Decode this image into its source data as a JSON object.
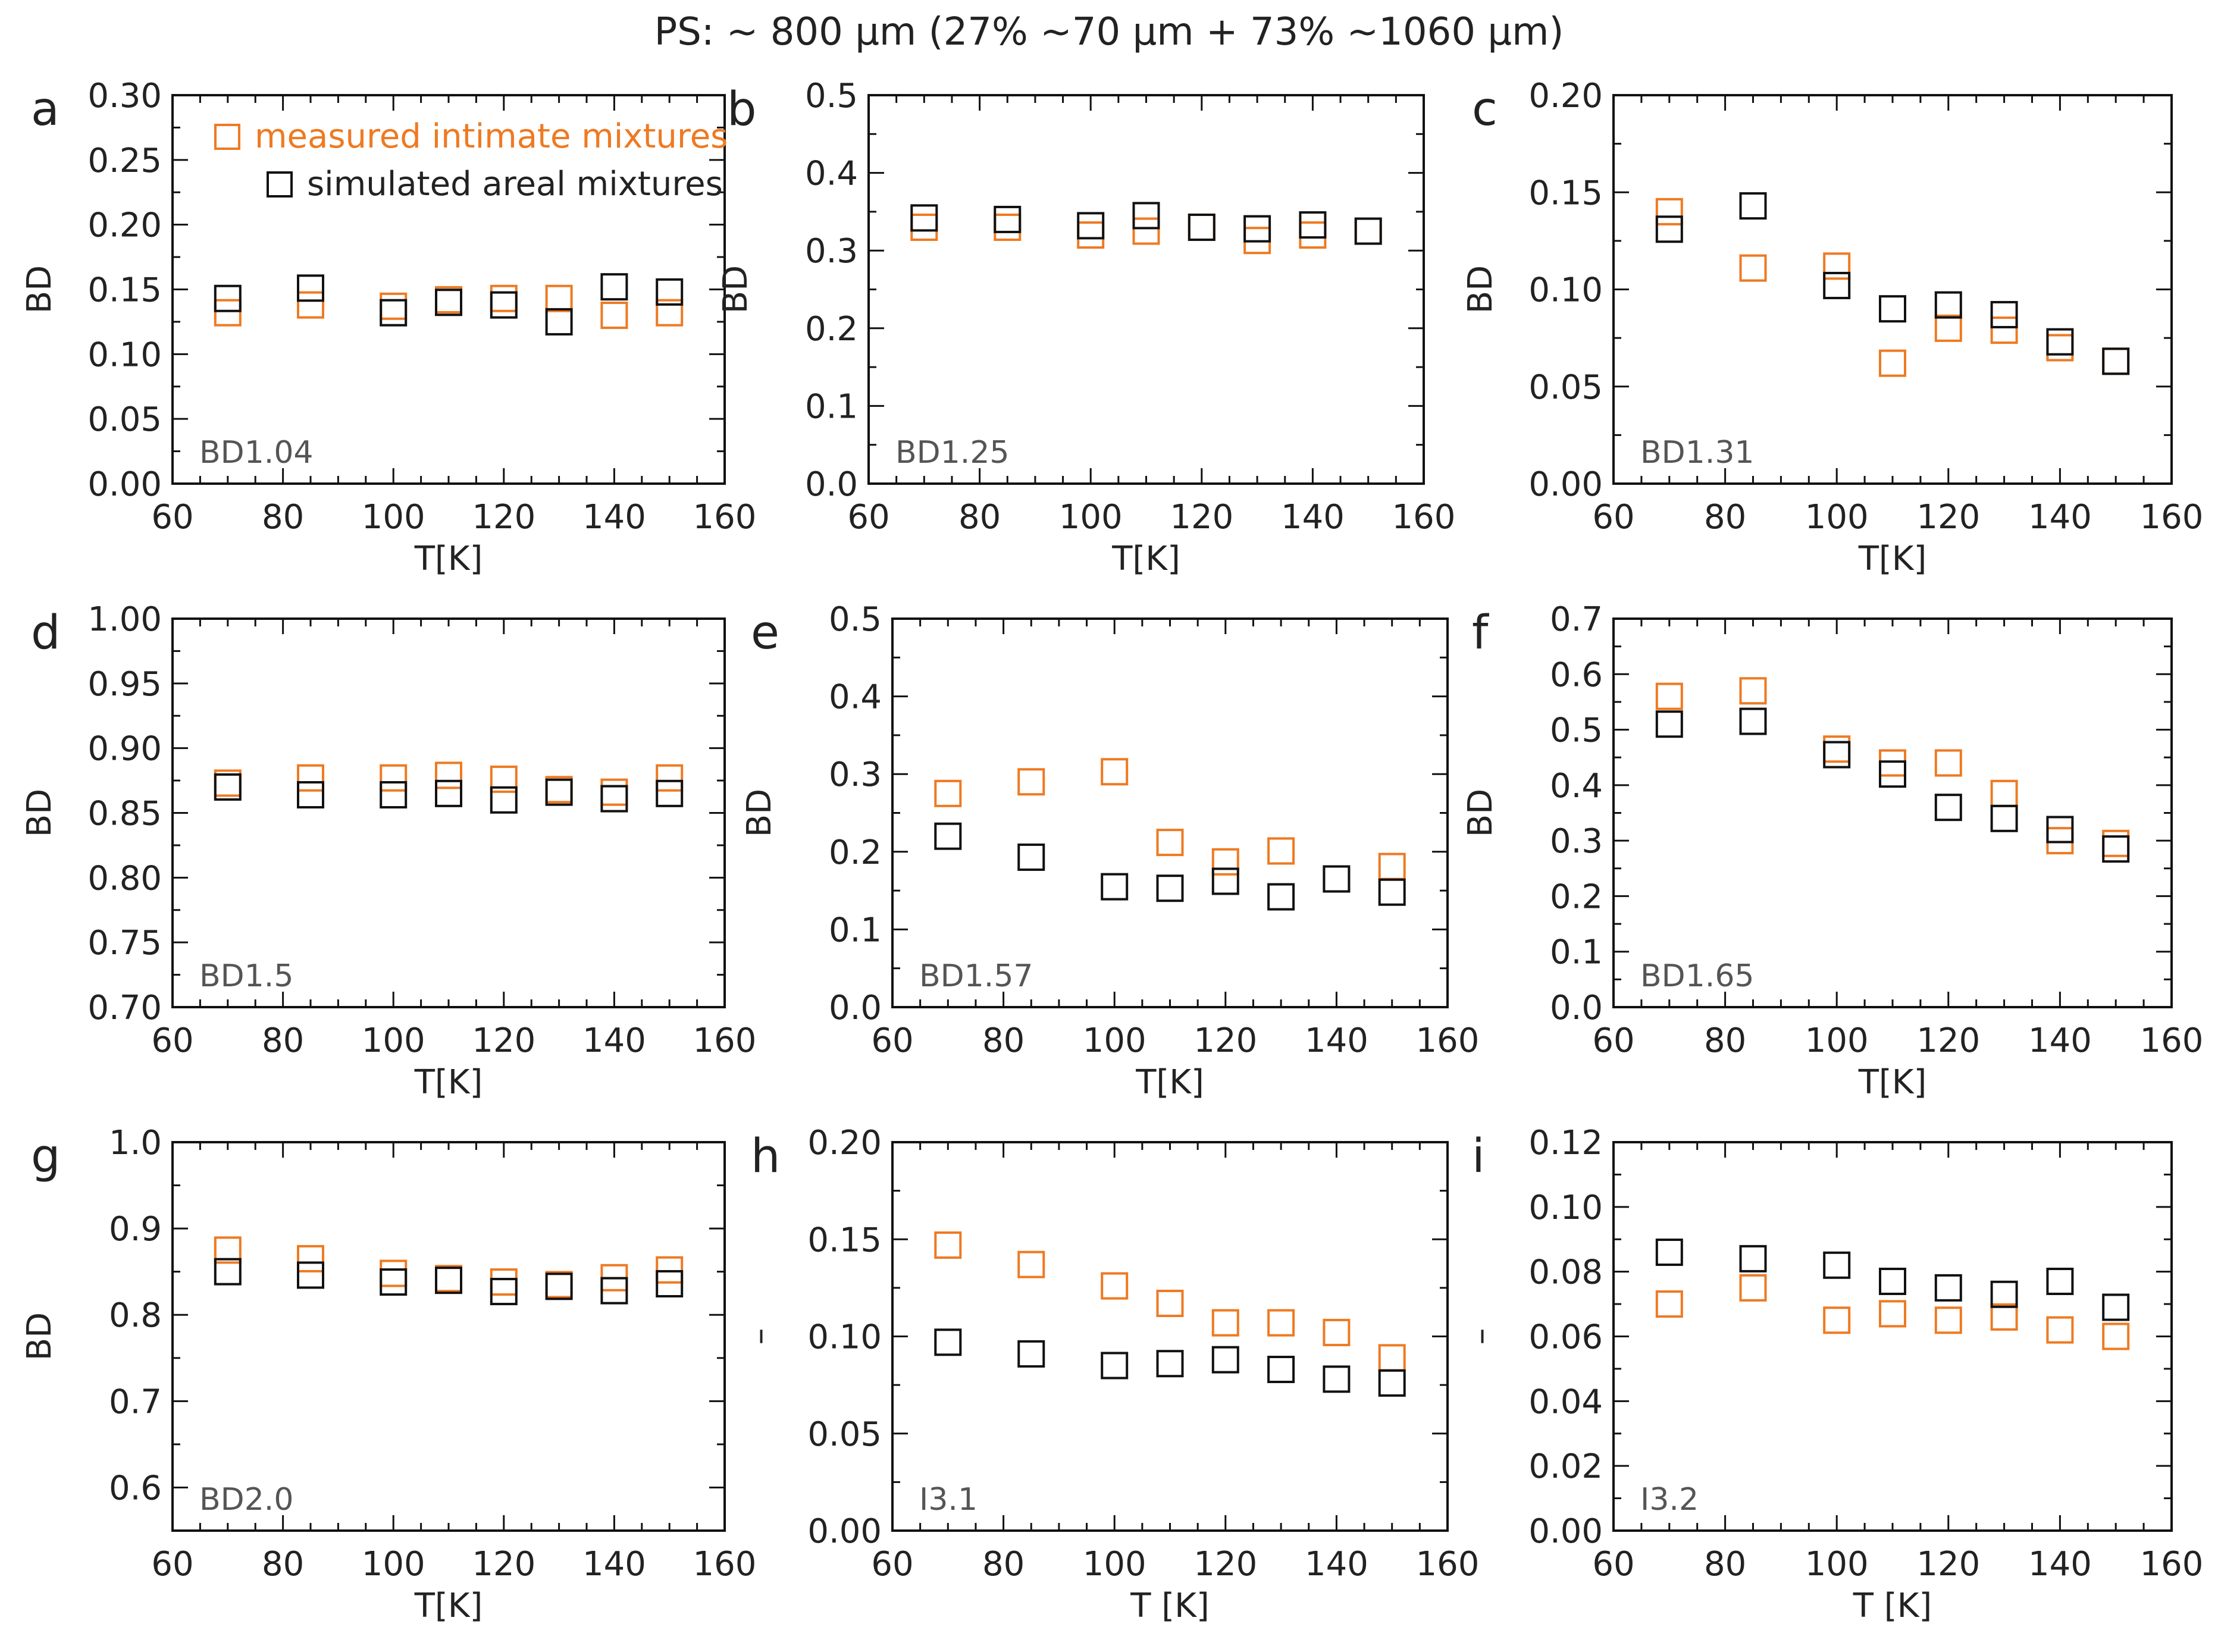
{
  "suptitle": "PS: ~ 800 µm  (27% ~70 µm + 73% ~1060 µm)",
  "colors": {
    "measured": "#ee7a22",
    "simulated": "#111111",
    "axis": "#111111"
  },
  "legend": {
    "measured": "measured intimate mixtures",
    "simulated": "simulated areal mixtures"
  },
  "chart_data": [
    {
      "type": "scatter",
      "panel": "a",
      "label": "BD1.04",
      "xlabel": "T[K]",
      "ylabel": "BD",
      "xlim": [
        60,
        160
      ],
      "ylim": [
        0.0,
        0.3
      ],
      "xticks": [
        "60",
        "80",
        "100",
        "120",
        "140",
        "160"
      ],
      "yticks": [
        "0.00",
        "0.05",
        "0.10",
        "0.15",
        "0.20",
        "0.25",
        "0.30"
      ],
      "x": [
        70,
        85,
        100,
        110,
        120,
        130,
        140,
        150
      ],
      "series": [
        {
          "name": "measured intimate mixtures",
          "values": [
            0.132,
            0.138,
            0.137,
            0.142,
            0.143,
            0.143,
            0.13,
            0.132
          ]
        },
        {
          "name": "simulated areal mixtures",
          "values": [
            0.143,
            0.151,
            0.132,
            0.14,
            0.138,
            0.125,
            0.152,
            0.148
          ]
        }
      ]
    },
    {
      "type": "scatter",
      "panel": "b",
      "label": "BD1.25",
      "xlabel": "T[K]",
      "ylabel": "BD",
      "xlim": [
        60,
        160
      ],
      "ylim": [
        0.0,
        0.5
      ],
      "xticks": [
        "60",
        "80",
        "100",
        "120",
        "140",
        "160"
      ],
      "yticks": [
        "0.0",
        "0.1",
        "0.2",
        "0.3",
        "0.4",
        "0.5"
      ],
      "x": [
        70,
        85,
        100,
        110,
        120,
        130,
        140,
        150
      ],
      "series": [
        {
          "name": "measured intimate mixtures",
          "values": [
            0.33,
            0.33,
            0.32,
            0.325,
            0.33,
            0.313,
            0.32,
            0.325
          ]
        },
        {
          "name": "simulated areal mixtures",
          "values": [
            0.342,
            0.34,
            0.332,
            0.345,
            0.33,
            0.328,
            0.333,
            0.325
          ]
        }
      ]
    },
    {
      "type": "scatter",
      "panel": "c",
      "label": "BD1.31",
      "xlabel": "T[K]",
      "ylabel": "BD",
      "xlim": [
        60,
        160
      ],
      "ylim": [
        0.0,
        0.2
      ],
      "xticks": [
        "60",
        "80",
        "100",
        "120",
        "140",
        "160"
      ],
      "yticks": [
        "0.00",
        "0.05",
        "0.10",
        "0.15",
        "0.20"
      ],
      "x": [
        70,
        85,
        100,
        110,
        120,
        130,
        140,
        150
      ],
      "series": [
        {
          "name": "measured intimate mixtures",
          "values": [
            0.14,
            0.111,
            0.112,
            0.062,
            0.08,
            0.079,
            0.07,
            0.063
          ]
        },
        {
          "name": "simulated areal mixtures",
          "values": [
            0.131,
            0.143,
            0.102,
            0.09,
            0.092,
            0.087,
            0.073,
            0.063
          ]
        }
      ]
    },
    {
      "type": "scatter",
      "panel": "d",
      "label": "BD1.5",
      "xlabel": "T[K]",
      "ylabel": "BD",
      "xlim": [
        60,
        160
      ],
      "ylim": [
        0.7,
        1.0
      ],
      "xticks": [
        "60",
        "80",
        "100",
        "120",
        "140",
        "160"
      ],
      "yticks": [
        "0.70",
        "0.75",
        "0.80",
        "0.85",
        "0.90",
        "0.95",
        "1.00"
      ],
      "x": [
        70,
        85,
        100,
        110,
        120,
        130,
        140,
        150
      ],
      "series": [
        {
          "name": "measured intimate mixtures",
          "values": [
            0.873,
            0.877,
            0.877,
            0.879,
            0.876,
            0.868,
            0.866,
            0.877
          ]
        },
        {
          "name": "simulated areal mixtures",
          "values": [
            0.87,
            0.864,
            0.864,
            0.865,
            0.86,
            0.866,
            0.861,
            0.865
          ]
        }
      ]
    },
    {
      "type": "scatter",
      "panel": "e",
      "label": "BD1.57",
      "xlabel": "T[K]",
      "ylabel": "BD",
      "xlim": [
        60,
        160
      ],
      "ylim": [
        0.0,
        0.5
      ],
      "xticks": [
        "60",
        "80",
        "100",
        "120",
        "140",
        "160"
      ],
      "yticks": [
        "0.0",
        "0.1",
        "0.2",
        "0.3",
        "0.4",
        "0.5"
      ],
      "x": [
        70,
        85,
        100,
        110,
        120,
        130,
        140,
        150
      ],
      "series": [
        {
          "name": "measured intimate mixtures",
          "values": [
            0.275,
            0.29,
            0.303,
            0.212,
            0.187,
            0.201,
            0.165,
            0.181
          ]
        },
        {
          "name": "simulated areal mixtures",
          "values": [
            0.22,
            0.193,
            0.155,
            0.153,
            0.162,
            0.142,
            0.165,
            0.148
          ]
        }
      ]
    },
    {
      "type": "scatter",
      "panel": "f",
      "label": "BD1.65",
      "xlabel": "T[K]",
      "ylabel": "BD",
      "xlim": [
        60,
        160
      ],
      "ylim": [
        0.0,
        0.7
      ],
      "xticks": [
        "60",
        "80",
        "100",
        "120",
        "140",
        "160"
      ],
      "yticks": [
        "0.0",
        "0.1",
        "0.2",
        "0.3",
        "0.4",
        "0.5",
        "0.6",
        "0.7"
      ],
      "x": [
        70,
        85,
        100,
        110,
        120,
        130,
        140,
        150
      ],
      "series": [
        {
          "name": "measured intimate mixtures",
          "values": [
            0.56,
            0.57,
            0.465,
            0.44,
            0.44,
            0.385,
            0.3,
            0.295
          ]
        },
        {
          "name": "simulated areal mixtures",
          "values": [
            0.51,
            0.515,
            0.455,
            0.42,
            0.36,
            0.34,
            0.32,
            0.285
          ]
        }
      ]
    },
    {
      "type": "scatter",
      "panel": "g",
      "label": "BD2.0",
      "xlabel": "T[K]",
      "ylabel": "BD",
      "xlim": [
        60,
        160
      ],
      "ylim": [
        0.55,
        1.0
      ],
      "xticks": [
        "60",
        "80",
        "100",
        "120",
        "140",
        "160"
      ],
      "yticks": [
        "0.6",
        "0.7",
        "0.8",
        "0.9",
        "1.0"
      ],
      "ytick_values": [
        0.6,
        0.7,
        0.8,
        0.9,
        1.0
      ],
      "x": [
        70,
        85,
        100,
        110,
        120,
        130,
        140,
        150
      ],
      "series": [
        {
          "name": "measured intimate mixtures",
          "values": [
            0.875,
            0.865,
            0.848,
            0.842,
            0.838,
            0.835,
            0.843,
            0.852
          ]
        },
        {
          "name": "simulated areal mixtures",
          "values": [
            0.85,
            0.846,
            0.838,
            0.84,
            0.827,
            0.833,
            0.828,
            0.836
          ]
        }
      ]
    },
    {
      "type": "scatter",
      "panel": "h",
      "label": "I3.1",
      "xlabel": "T [K]",
      "ylabel": "–",
      "xlim": [
        60,
        160
      ],
      "ylim": [
        0.0,
        0.2
      ],
      "xticks": [
        "60",
        "80",
        "100",
        "120",
        "140",
        "160"
      ],
      "yticks": [
        "0.00",
        "0.05",
        "0.10",
        "0.15",
        "0.20"
      ],
      "x": [
        70,
        85,
        100,
        110,
        120,
        130,
        140,
        150
      ],
      "series": [
        {
          "name": "measured intimate mixtures",
          "values": [
            0.147,
            0.137,
            0.126,
            0.117,
            0.107,
            0.107,
            0.102,
            0.089
          ]
        },
        {
          "name": "simulated areal mixtures",
          "values": [
            0.097,
            0.091,
            0.085,
            0.086,
            0.088,
            0.083,
            0.078,
            0.076
          ]
        }
      ]
    },
    {
      "type": "scatter",
      "panel": "i",
      "label": "I3.2",
      "xlabel": "T [K]",
      "ylabel": "–",
      "xlim": [
        60,
        160
      ],
      "ylim": [
        0.0,
        0.12
      ],
      "xticks": [
        "60",
        "80",
        "100",
        "120",
        "140",
        "160"
      ],
      "yticks": [
        "0.00",
        "0.02",
        "0.04",
        "0.06",
        "0.08",
        "0.10",
        "0.12"
      ],
      "x": [
        70,
        85,
        100,
        110,
        120,
        130,
        140,
        150
      ],
      "series": [
        {
          "name": "measured intimate mixtures",
          "values": [
            0.07,
            0.075,
            0.065,
            0.067,
            0.065,
            0.066,
            0.062,
            0.06
          ]
        },
        {
          "name": "simulated areal mixtures",
          "values": [
            0.086,
            0.084,
            0.082,
            0.077,
            0.075,
            0.073,
            0.077,
            0.069
          ]
        }
      ]
    }
  ]
}
